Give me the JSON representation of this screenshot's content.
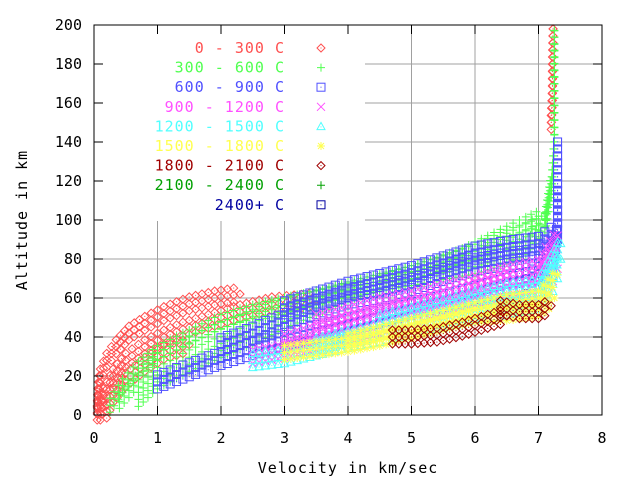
{
  "chart_data": {
    "type": "scatter",
    "title": "",
    "xlabel": "Velocity in km/sec",
    "ylabel": "Altitude in km",
    "xlim": [
      0,
      8
    ],
    "ylim": [
      0,
      200
    ],
    "xticks": [
      "0",
      "1",
      "2",
      "3",
      "4",
      "5",
      "6",
      "7",
      "8"
    ],
    "yticks": [
      "0",
      "20",
      "40",
      "60",
      "80",
      "100",
      "120",
      "140",
      "160",
      "180",
      "200"
    ],
    "grid": true,
    "legend_position": "top-left",
    "series": [
      {
        "name": "0 - 300 C",
        "color": "#ff5050",
        "marker": "diamond",
        "tracks": [
          [
            [
              0.05,
              1
            ],
            [
              0.06,
              10
            ],
            [
              0.1,
              20
            ],
            [
              0.2,
              28
            ],
            [
              0.35,
              35
            ],
            [
              0.55,
              42
            ],
            [
              0.8,
              47
            ],
            [
              1.1,
              52
            ],
            [
              1.5,
              57
            ],
            [
              1.9,
              60
            ],
            [
              2.3,
              62
            ]
          ],
          [
            [
              0.1,
              1
            ],
            [
              0.15,
              10
            ],
            [
              0.3,
              20
            ],
            [
              0.5,
              28
            ],
            [
              0.8,
              35
            ],
            [
              1.1,
              40
            ],
            [
              1.4,
              44
            ],
            [
              1.8,
              48
            ],
            [
              2.3,
              53
            ],
            [
              2.8,
              57
            ],
            [
              3.5,
              59
            ]
          ],
          [
            [
              0.2,
              2
            ],
            [
              0.3,
              10
            ],
            [
              0.5,
              18
            ],
            [
              0.8,
              26
            ],
            [
              1.1,
              32
            ],
            [
              1.5,
              36
            ]
          ],
          [
            [
              7.2,
              150
            ],
            [
              7.22,
              165
            ],
            [
              7.22,
              180
            ],
            [
              7.23,
              198
            ]
          ]
        ]
      },
      {
        "name": "300 - 600 C",
        "color": "#50ff50",
        "marker": "plus",
        "tracks": [
          [
            [
              0.25,
              5
            ],
            [
              0.45,
              15
            ],
            [
              0.7,
              24
            ],
            [
              1.0,
              32
            ],
            [
              1.5,
              40
            ],
            [
              2.0,
              48
            ],
            [
              2.5,
              53
            ],
            [
              3.0,
              57
            ],
            [
              3.5,
              60
            ],
            [
              4.0,
              64
            ],
            [
              4.5,
              67
            ],
            [
              5.0,
              70
            ],
            [
              5.5,
              73
            ],
            [
              6.0,
              76
            ],
            [
              6.4,
              80
            ],
            [
              6.8,
              86
            ],
            [
              7.1,
              97
            ],
            [
              7.2,
              115
            ],
            [
              7.25,
              140
            ],
            [
              7.25,
              170
            ],
            [
              7.25,
              197
            ]
          ],
          [
            [
              0.4,
              7
            ],
            [
              0.7,
              18
            ],
            [
              1.0,
              28
            ],
            [
              1.5,
              37
            ],
            [
              2.0,
              44
            ],
            [
              2.6,
              52
            ],
            [
              3.2,
              58
            ],
            [
              3.8,
              63
            ],
            [
              4.4,
              68
            ],
            [
              5.0,
              73
            ],
            [
              5.6,
              79
            ],
            [
              6.0,
              84
            ],
            [
              6.4,
              90
            ],
            [
              6.8,
              95
            ],
            [
              7.1,
              100
            ],
            [
              7.2,
              120
            ]
          ],
          [
            [
              0.7,
              8
            ],
            [
              1.0,
              17
            ],
            [
              1.5,
              26
            ],
            [
              2.0,
              33
            ],
            [
              2.5,
              40
            ],
            [
              3.0,
              48
            ],
            [
              3.5,
              55
            ],
            [
              4.0,
              62
            ],
            [
              4.6,
              69
            ],
            [
              5.2,
              75
            ],
            [
              5.8,
              82
            ],
            [
              6.3,
              90
            ],
            [
              6.8,
              98
            ],
            [
              7.05,
              102
            ]
          ]
        ]
      },
      {
        "name": "600 - 900 C",
        "color": "#5050ff",
        "marker": "box",
        "tracks": [
          [
            [
              1.0,
              17
            ],
            [
              1.4,
              22
            ],
            [
              1.9,
              28
            ],
            [
              2.4,
              33
            ],
            [
              2.9,
              38
            ],
            [
              3.4,
              42
            ],
            [
              3.9,
              46
            ],
            [
              4.4,
              50
            ],
            [
              4.9,
              54
            ],
            [
              5.4,
              58
            ],
            [
              5.9,
              62
            ],
            [
              6.4,
              66
            ],
            [
              6.8,
              70
            ],
            [
              7.2,
              75
            ],
            [
              7.3,
              95
            ],
            [
              7.3,
              115
            ],
            [
              7.3,
              140
            ]
          ],
          [
            [
              2.0,
              36
            ],
            [
              2.5,
              42
            ],
            [
              3.0,
              49
            ],
            [
              3.5,
              55
            ],
            [
              4.0,
              60
            ],
            [
              4.5,
              63
            ],
            [
              5.0,
              67
            ],
            [
              5.5,
              72
            ],
            [
              6.0,
              77
            ],
            [
              6.5,
              80
            ],
            [
              7.0,
              82
            ],
            [
              7.3,
              90
            ]
          ],
          [
            [
              3.0,
              55
            ],
            [
              3.5,
              60
            ],
            [
              4.0,
              65
            ],
            [
              4.5,
              69
            ],
            [
              5.0,
              73
            ],
            [
              5.5,
              78
            ],
            [
              6.0,
              83
            ],
            [
              6.5,
              86
            ],
            [
              7.0,
              88
            ],
            [
              7.3,
              95
            ]
          ]
        ]
      },
      {
        "name": "900 - 1200 C",
        "color": "#ff50ff",
        "marker": "cross",
        "tracks": [
          [
            [
              2.5,
              30
            ],
            [
              3.0,
              33
            ],
            [
              3.5,
              37
            ],
            [
              4.0,
              41
            ],
            [
              4.5,
              45
            ],
            [
              5.0,
              50
            ],
            [
              5.5,
              55
            ],
            [
              6.0,
              60
            ],
            [
              6.5,
              62
            ],
            [
              7.0,
              64
            ],
            [
              7.3,
              75
            ]
          ],
          [
            [
              3.0,
              38
            ],
            [
              3.5,
              43
            ],
            [
              4.0,
              48
            ],
            [
              4.5,
              52
            ],
            [
              5.0,
              56
            ],
            [
              5.5,
              60
            ],
            [
              6.0,
              65
            ],
            [
              6.5,
              70
            ],
            [
              7.0,
              72
            ],
            [
              7.3,
              85
            ]
          ],
          [
            [
              3.5,
              48
            ],
            [
              4.0,
              52
            ],
            [
              4.5,
              57
            ],
            [
              5.0,
              60
            ],
            [
              5.5,
              64
            ],
            [
              6.0,
              68
            ],
            [
              6.5,
              73
            ],
            [
              7.0,
              76
            ],
            [
              7.3,
              92
            ]
          ]
        ]
      },
      {
        "name": "1200 - 1500 C",
        "color": "#50ffff",
        "marker": "triangle",
        "tracks": [
          [
            [
              2.5,
              28
            ],
            [
              3.0,
              30
            ],
            [
              3.5,
              34
            ],
            [
              4.0,
              38
            ],
            [
              4.5,
              41
            ],
            [
              5.0,
              45
            ],
            [
              5.5,
              48
            ],
            [
              6.0,
              52
            ],
            [
              6.5,
              55
            ],
            [
              7.0,
              58
            ],
            [
              7.3,
              70
            ]
          ],
          [
            [
              3.5,
              36
            ],
            [
              4.0,
              40
            ],
            [
              4.5,
              44
            ],
            [
              5.0,
              48
            ],
            [
              5.5,
              52
            ],
            [
              6.0,
              56
            ],
            [
              6.5,
              60
            ],
            [
              7.0,
              62
            ],
            [
              7.35,
              80
            ]
          ],
          [
            [
              4.5,
              48
            ],
            [
              5.0,
              52
            ],
            [
              5.5,
              56
            ],
            [
              6.0,
              60
            ],
            [
              6.5,
              64
            ],
            [
              7.0,
              66
            ],
            [
              7.35,
              88
            ]
          ]
        ]
      },
      {
        "name": "1500 - 1800 C",
        "color": "#ffff50",
        "marker": "star",
        "tracks": [
          [
            [
              3.0,
              32
            ],
            [
              3.5,
              34
            ],
            [
              4.0,
              36
            ],
            [
              4.5,
              39
            ],
            [
              5.0,
              43
            ],
            [
              5.5,
              47
            ],
            [
              6.0,
              51
            ],
            [
              6.5,
              52
            ],
            [
              7.0,
              54
            ],
            [
              7.25,
              60
            ]
          ],
          [
            [
              4.0,
              38
            ],
            [
              4.5,
              42
            ],
            [
              5.0,
              46
            ],
            [
              5.5,
              50
            ],
            [
              6.0,
              54
            ],
            [
              6.5,
              58
            ],
            [
              7.0,
              60
            ],
            [
              7.3,
              72
            ]
          ]
        ]
      },
      {
        "name": "1800 - 2100 C",
        "color": "#a00000",
        "marker": "diamond",
        "tracks": [
          [
            [
              4.7,
              40
            ],
            [
              5.0,
              40
            ],
            [
              5.4,
              41
            ],
            [
              5.8,
              44
            ],
            [
              6.2,
              48
            ],
            [
              6.5,
              51
            ]
          ],
          [
            [
              6.4,
              55
            ],
            [
              6.7,
              53
            ],
            [
              7.0,
              53
            ],
            [
              7.2,
              56
            ]
          ]
        ]
      },
      {
        "name": "2100 - 2400 C",
        "color": "#00a000",
        "marker": "plus",
        "tracks": []
      },
      {
        "name": "2400+ C",
        "color": "#0000a0",
        "marker": "box",
        "tracks": []
      }
    ]
  }
}
